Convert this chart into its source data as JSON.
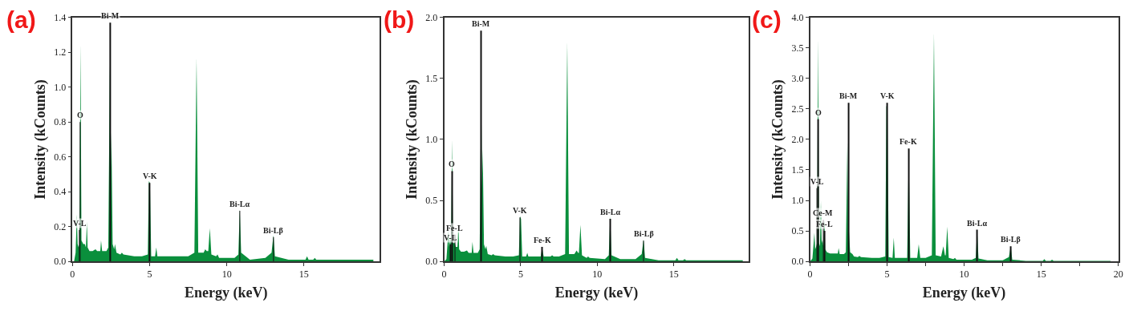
{
  "chart_data": [
    {
      "type": "area",
      "title": "(a)",
      "xlabel": "Energy (keV)",
      "ylabel": "Intensity (kCounts)",
      "xlim": [
        0,
        19.9
      ],
      "ylim": [
        0,
        1.4
      ],
      "xticks": [
        0,
        5,
        10,
        15
      ],
      "yticks": [
        {
          "value": 0,
          "label": "0.0"
        },
        {
          "value": 0.2,
          "label": "0.2"
        },
        {
          "value": 0.4,
          "label": "0.4"
        },
        {
          "value": 0.6,
          "label": "0.6"
        },
        {
          "value": 0.8,
          "label": "0.8"
        },
        {
          "value": 1,
          "label": "1.0"
        },
        {
          "value": 1.2,
          "label": "1.2"
        },
        {
          "value": 1.4,
          "label": "1.4"
        }
      ],
      "series": [
        {
          "color": "#0a8f3c",
          "x": [
            0,
            0.1,
            0.2,
            0.28,
            0.33,
            0.4,
            0.45,
            0.52,
            0.58,
            0.7,
            0.8,
            0.87,
            0.93,
            0.98,
            1.1,
            1.3,
            1.49,
            1.6,
            1.8,
            1.85,
            1.92,
            2.2,
            2.32,
            2.42,
            2.47,
            2.52,
            2.6,
            2.7,
            2.75,
            2.85,
            3.1,
            3.2,
            3.3,
            4.0,
            4.5,
            4.88,
            4.95,
            5.02,
            5.1,
            5.35,
            5.43,
            5.5,
            6.5,
            7.0,
            7.5,
            7.9,
            8.04,
            8.15,
            8.5,
            8.6,
            8.7,
            8.8,
            8.9,
            9.0,
            9.3,
            9.4,
            9.5,
            10.5,
            10.75,
            10.84,
            10.93,
            11.5,
            12.5,
            12.9,
            13.02,
            13.12,
            14,
            15.1,
            15.2,
            15.3,
            15.6,
            15.7,
            15.8,
            17,
            19.5
          ],
          "values": [
            0,
            0,
            0.05,
            0.27,
            0.1,
            0.08,
            0.1,
            1.25,
            0.12,
            0.1,
            0.1,
            0.08,
            0.23,
            0.08,
            0.06,
            0.06,
            0.07,
            0.06,
            0.06,
            0.12,
            0.06,
            0.06,
            0.08,
            1.13,
            0.5,
            0.74,
            0.1,
            0.07,
            0.1,
            0.05,
            0.04,
            0.05,
            0.04,
            0.03,
            0.03,
            0.04,
            0.46,
            0.45,
            0.03,
            0.03,
            0.08,
            0.03,
            0.03,
            0.03,
            0.03,
            0.05,
            1.17,
            0.05,
            0.05,
            0.07,
            0.06,
            0.06,
            0.19,
            0.04,
            0.03,
            0.04,
            0.02,
            0.02,
            0.04,
            0.3,
            0.05,
            0.01,
            0.02,
            0.05,
            0.15,
            0.03,
            0.01,
            0.01,
            0.03,
            0.01,
            0.01,
            0.02,
            0.01,
            0.01,
            0.01
          ]
        },
        {
          "type": "bar",
          "color": "#111111",
          "x": [
            0.45,
            0.5,
            2.45,
            5.0,
            10.84,
            13.02
          ],
          "values": [
            0.18,
            0.8,
            1.37,
            0.45,
            0.29,
            0.14
          ]
        }
      ],
      "annotations": [
        {
          "text": "O",
          "x": 0.5,
          "y": 0.8
        },
        {
          "text": "V-L",
          "x": 0.45,
          "y": 0.18
        },
        {
          "text": "Bi-M",
          "x": 2.45,
          "y": 1.37
        },
        {
          "text": "V-K",
          "x": 5.0,
          "y": 0.45
        },
        {
          "text": "Bi-Lα",
          "x": 10.84,
          "y": 0.29
        },
        {
          "text": "Bi-Lβ",
          "x": 13.02,
          "y": 0.14
        }
      ]
    },
    {
      "type": "area",
      "title": "(b)",
      "xlabel": "Energy (keV)",
      "ylabel": "Intensity (kCounts)",
      "xlim": [
        0,
        19.9
      ],
      "ylim": [
        0,
        2
      ],
      "xticks": [
        0,
        5,
        10,
        15
      ],
      "yticks": [
        {
          "value": 0,
          "label": "0.0"
        },
        {
          "value": 0.5,
          "label": "0.5"
        },
        {
          "value": 1,
          "label": "1.0"
        },
        {
          "value": 1.5,
          "label": "1.5"
        },
        {
          "value": 2,
          "label": "2.0"
        }
      ],
      "series": [
        {
          "color": "#0a8f3c",
          "x": [
            0,
            0.15,
            0.28,
            0.33,
            0.4,
            0.45,
            0.52,
            0.58,
            0.7,
            0.76,
            0.87,
            0.93,
            0.98,
            1.1,
            1.3,
            1.49,
            1.6,
            1.8,
            1.85,
            1.92,
            2.2,
            2.32,
            2.42,
            2.47,
            2.52,
            2.6,
            2.7,
            2.75,
            2.85,
            3.1,
            3.2,
            3.3,
            4.0,
            4.5,
            4.88,
            4.95,
            5.02,
            5.1,
            5.35,
            5.43,
            5.5,
            6.3,
            6.4,
            6.5,
            6.95,
            7.05,
            7.15,
            7.5,
            7.9,
            8.04,
            8.15,
            8.5,
            8.65,
            8.75,
            8.8,
            8.9,
            9.0,
            9.3,
            9.4,
            9.5,
            10.5,
            10.75,
            10.84,
            10.93,
            11.5,
            12.5,
            12.9,
            13.02,
            13.12,
            14,
            15.1,
            15.2,
            15.3,
            15.6,
            15.7,
            15.8,
            17,
            19.5
          ],
          "values": [
            0,
            0.02,
            0.25,
            0.12,
            0.2,
            0.12,
            1.0,
            0.15,
            0.15,
            0.12,
            0.12,
            0.3,
            0.1,
            0.08,
            0.08,
            0.09,
            0.07,
            0.07,
            0.16,
            0.07,
            0.07,
            0.1,
            1.42,
            0.6,
            0.92,
            0.14,
            0.1,
            0.13,
            0.06,
            0.05,
            0.06,
            0.05,
            0.04,
            0.04,
            0.05,
            0.37,
            0.35,
            0.04,
            0.04,
            0.07,
            0.04,
            0.04,
            0.11,
            0.04,
            0.04,
            0.05,
            0.04,
            0.04,
            0.06,
            1.8,
            0.06,
            0.06,
            0.09,
            0.07,
            0.07,
            0.3,
            0.05,
            0.03,
            0.04,
            0.03,
            0.02,
            0.05,
            0.37,
            0.05,
            0.02,
            0.02,
            0.06,
            0.18,
            0.03,
            0.01,
            0.01,
            0.03,
            0.01,
            0.01,
            0.02,
            0.01,
            0.01,
            0.01
          ]
        },
        {
          "type": "bar",
          "color": "#111111",
          "x": [
            0.42,
            0.52,
            0.7,
            2.42,
            4.95,
            6.4,
            10.84,
            13.02
          ],
          "values": [
            0.14,
            0.74,
            0.22,
            1.89,
            0.36,
            0.12,
            0.35,
            0.17
          ]
        }
      ],
      "annotations": [
        {
          "text": "V-L",
          "x": 0.42,
          "y": 0.14
        },
        {
          "text": "O",
          "x": 0.52,
          "y": 0.74
        },
        {
          "text": "Fe-L",
          "x": 0.7,
          "y": 0.22
        },
        {
          "text": "Bi-M",
          "x": 2.42,
          "y": 1.89
        },
        {
          "text": "V-K",
          "x": 4.95,
          "y": 0.36
        },
        {
          "text": "Fe-K",
          "x": 6.4,
          "y": 0.12
        },
        {
          "text": "Bi-Lα",
          "x": 10.84,
          "y": 0.35
        },
        {
          "text": "Bi-Lβ",
          "x": 13.02,
          "y": 0.17
        }
      ]
    },
    {
      "type": "area",
      "title": "(c)",
      "xlabel": "Energy (keV)",
      "ylabel": "Intensity (kCounts)",
      "xlim": [
        0,
        20
      ],
      "ylim": [
        0,
        4
      ],
      "xticks": [
        0,
        {
          "value": 2.5,
          "label": null
        },
        5,
        {
          "value": 7.5,
          "label": null
        },
        10,
        {
          "value": 12.5,
          "label": null
        },
        15,
        {
          "value": 17.5,
          "label": null
        },
        20
      ],
      "yticks": [
        {
          "value": 0,
          "label": "0.0"
        },
        {
          "value": 0.5,
          "label": "0.5"
        },
        {
          "value": 1,
          "label": "1.0"
        },
        {
          "value": 1.5,
          "label": "1.5"
        },
        {
          "value": 2,
          "label": "2.0"
        },
        {
          "value": 2.5,
          "label": "2.5"
        },
        {
          "value": 3,
          "label": "3.0"
        },
        {
          "value": 3.5,
          "label": "3.5"
        },
        {
          "value": 4,
          "label": "4.0"
        }
      ],
      "series": [
        {
          "color": "#0a8f3c",
          "x": [
            0,
            0.15,
            0.28,
            0.33,
            0.4,
            0.45,
            0.52,
            0.58,
            0.64,
            0.7,
            0.75,
            0.8,
            0.86,
            0.93,
            0.98,
            1.1,
            1.3,
            1.8,
            1.85,
            1.92,
            2.2,
            2.32,
            2.42,
            2.47,
            2.52,
            2.6,
            2.75,
            2.85,
            3.1,
            3.2,
            3.3,
            4.0,
            4.5,
            4.88,
            4.95,
            5.02,
            5.1,
            5.35,
            5.43,
            5.5,
            6.3,
            6.4,
            6.5,
            6.95,
            7.05,
            7.15,
            7.5,
            7.9,
            8.04,
            8.15,
            8.5,
            8.65,
            8.75,
            8.8,
            8.9,
            9.0,
            9.3,
            9.4,
            9.5,
            10.5,
            10.75,
            10.84,
            10.93,
            11.5,
            12.5,
            12.9,
            13.02,
            13.12,
            14,
            15.1,
            15.2,
            15.3,
            15.6,
            15.7,
            15.8,
            17,
            19.5
          ],
          "values": [
            0,
            0.05,
            0.47,
            0.2,
            0.25,
            0.3,
            3.65,
            0.3,
            0.25,
            1.0,
            0.3,
            0.35,
            0.25,
            0.68,
            0.2,
            0.15,
            0.13,
            0.13,
            0.22,
            0.12,
            0.12,
            0.15,
            1.96,
            0.4,
            0.5,
            0.15,
            0.12,
            0.08,
            0.07,
            0.09,
            0.07,
            0.06,
            0.06,
            0.08,
            2.55,
            2.5,
            0.07,
            0.06,
            0.39,
            0.06,
            0.06,
            1.8,
            0.06,
            0.06,
            0.28,
            0.06,
            0.06,
            0.1,
            3.75,
            0.1,
            0.08,
            0.25,
            0.1,
            0.1,
            0.57,
            0.06,
            0.04,
            0.06,
            0.03,
            0.03,
            0.06,
            0.5,
            0.05,
            0.02,
            0.02,
            0.07,
            0.25,
            0.03,
            0.01,
            0.01,
            0.04,
            0.01,
            0.01,
            0.03,
            0.01,
            0.01,
            0.01
          ]
        },
        {
          "type": "bar",
          "color": "#111111",
          "x": [
            0.45,
            0.52,
            0.85,
            0.93,
            2.5,
            5.0,
            6.4,
            10.84,
            13.02
          ],
          "values": [
            1.2,
            2.33,
            0.68,
            0.5,
            2.6,
            2.6,
            1.85,
            0.52,
            0.25
          ]
        }
      ],
      "annotations": [
        {
          "text": "V-L",
          "x": 0.45,
          "y": 1.2
        },
        {
          "text": "O",
          "x": 0.52,
          "y": 2.33
        },
        {
          "text": "Ce-M",
          "x": 0.85,
          "y": 0.68
        },
        {
          "text": "Fe-L",
          "x": 0.93,
          "y": 0.5
        },
        {
          "text": "Bi-M",
          "x": 2.5,
          "y": 2.6
        },
        {
          "text": "V-K",
          "x": 5.0,
          "y": 2.6
        },
        {
          "text": "Fe-K",
          "x": 6.4,
          "y": 1.85
        },
        {
          "text": "Bi-Lα",
          "x": 10.84,
          "y": 0.52
        },
        {
          "text": "Bi-Lβ",
          "x": 13.02,
          "y": 0.25
        }
      ]
    }
  ]
}
